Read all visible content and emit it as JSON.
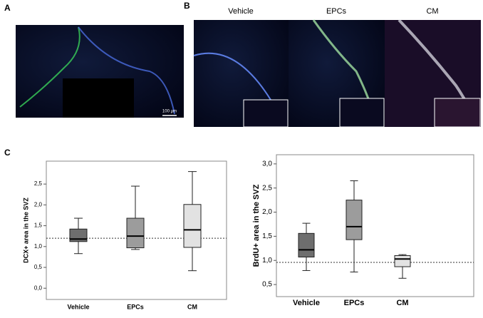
{
  "panels": {
    "a": "A",
    "b": "B",
    "c": "C"
  },
  "image_labels": [
    "Vehicle",
    "EPCs",
    "CM"
  ],
  "scale_bar": "100 µm",
  "chart_data": [
    {
      "type": "box",
      "ylabel": "DCX+ area in the SVZ",
      "categories": [
        "Vehicle",
        "EPCs",
        "CM"
      ],
      "colors": [
        "#6e6e6e",
        "#9c9c9c",
        "#e2e2e2"
      ],
      "boxes": [
        {
          "min": 0.83,
          "q1": 1.12,
          "median": 1.18,
          "q3": 1.42,
          "max": 1.68
        },
        {
          "min": 0.93,
          "q1": 0.97,
          "median": 1.25,
          "q3": 1.68,
          "max": 2.45
        },
        {
          "min": 0.42,
          "q1": 0.98,
          "median": 1.4,
          "q3": 2.01,
          "max": 2.8
        }
      ],
      "reference_line": 1.2,
      "ylim": [
        -0.27,
        3.05
      ],
      "yticks": [
        {
          "value": 0,
          "label": "0,0"
        },
        {
          "value": 0.5,
          "label": "0,5"
        },
        {
          "value": 1,
          "label": "1,0"
        },
        {
          "value": 1.5,
          "label": "1,5"
        },
        {
          "value": 2,
          "label": "2,0"
        },
        {
          "value": 2.5,
          "label": "2,5"
        }
      ]
    },
    {
      "type": "box",
      "ylabel": "BrdU+ area in the SVZ",
      "categories": [
        "Vehicle",
        "EPCs",
        "CM"
      ],
      "colors": [
        "#6e6e6e",
        "#9c9c9c",
        "#e2e2e2"
      ],
      "boxes": [
        {
          "min": 0.79,
          "q1": 1.07,
          "median": 1.22,
          "q3": 1.56,
          "max": 1.77
        },
        {
          "min": 0.76,
          "q1": 1.43,
          "median": 1.7,
          "q3": 2.25,
          "max": 2.65
        },
        {
          "min": 0.63,
          "q1": 0.87,
          "median": 1.03,
          "q3": 1.1,
          "max": 1.12
        }
      ],
      "reference_line": 0.96,
      "ylim": [
        0.25,
        3.19
      ],
      "yticks": [
        {
          "value": 0.5,
          "label": "0,5"
        },
        {
          "value": 1,
          "label": "1,0"
        },
        {
          "value": 1.5,
          "label": "1,5"
        },
        {
          "value": 2,
          "label": "2,0"
        },
        {
          "value": 2.5,
          "label": "2,5"
        },
        {
          "value": 3,
          "label": "3,0"
        }
      ]
    }
  ]
}
